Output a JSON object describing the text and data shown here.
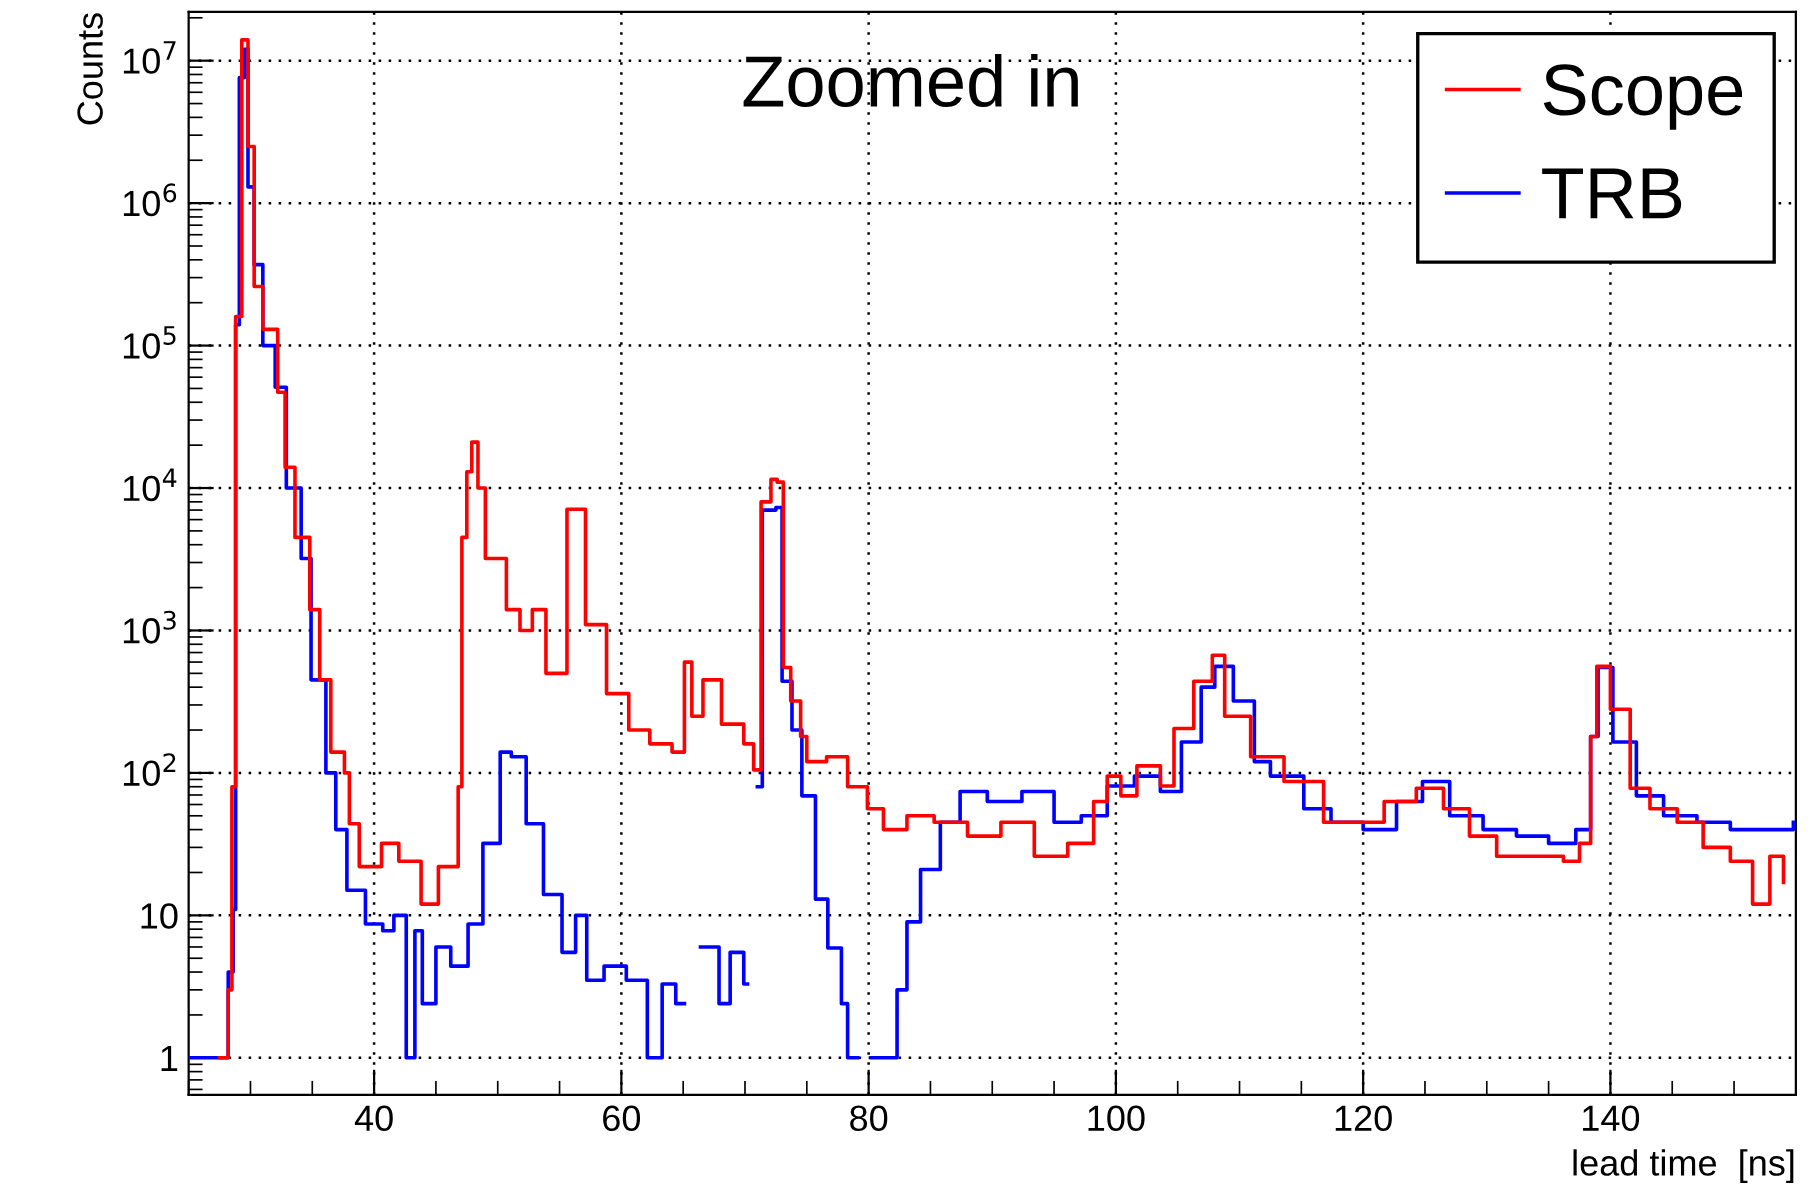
{
  "chart_data": {
    "type": "step",
    "xlabel": "lead time  [ns]",
    "ylabel": "Counts",
    "log": "y",
    "grid": true,
    "legend": "top right",
    "line_style": "solid",
    "marker": "none",
    "xlim": [
      25,
      155
    ],
    "xticks": [
      40,
      60,
      80,
      100,
      120,
      140
    ],
    "ylim": [
      0.55,
      22000000
    ],
    "yticks": [
      1,
      10,
      {
        "value": 100,
        "label": "10$^{2}$"
      },
      {
        "value": 1000,
        "label": "10$^{3}$"
      },
      {
        "value": 10000,
        "label": "10$^{4}$"
      },
      {
        "value": 100000,
        "label": "10$^{5}$"
      },
      {
        "value": 1000000,
        "label": "10$^{6}$"
      },
      {
        "value": 10000000,
        "label": "10$^{7}$"
      }
    ],
    "annotations": [
      "Zoomed in"
    ],
    "series": [
      {
        "name": "Scope",
        "color": "#ff0000",
        "x": [
          27.5,
          28.2,
          28.5,
          28.8,
          29.3,
          29.8,
          30.3,
          31.0,
          31.9,
          32.2,
          32.8,
          33.6,
          34.8,
          35.6,
          36.5,
          37.6,
          38.0,
          38.8,
          40.6,
          42.0,
          43.8,
          45.2,
          46.4,
          46.8,
          47.1,
          47.5,
          47.9,
          48.4,
          49.0,
          50.7,
          51.8,
          52.8,
          53.9,
          55.0,
          55.6,
          56.2,
          57.1,
          58.8,
          60.6,
          62.3,
          64.1,
          65.1,
          65.7,
          66.6,
          68.1,
          69.9,
          70.7,
          71.3,
          72.1,
          72.6,
          73.1,
          73.7,
          74.5,
          75.0,
          76.6,
          78.3,
          79.9,
          81.2,
          83.1,
          85.3,
          88.0,
          90.7,
          93.4,
          96.1,
          98.2,
          99.3,
          100.4,
          101.7,
          103.6,
          104.7,
          106.3,
          107.8,
          108.8,
          110.9,
          113.6,
          116.8,
          120.0,
          121.7,
          124.3,
          126.5,
          128.6,
          130.8,
          133.5,
          136.2,
          137.5,
          138.4,
          138.9,
          140.0,
          141.6,
          143.2,
          145.4,
          147.5,
          149.7,
          151.5,
          152.9,
          154.0
        ],
        "values": [
          1,
          3,
          80,
          160000,
          14000000,
          2500000,
          260000,
          130000,
          130000,
          47000,
          14000,
          4500,
          1400,
          450,
          140,
          100,
          44,
          22,
          32,
          24,
          12,
          22,
          22,
          80,
          4500,
          13000,
          21000,
          10000,
          3200,
          1400,
          1000,
          1400,
          500,
          500,
          7100,
          7100,
          1100,
          360,
          200,
          160,
          140,
          600,
          250,
          450,
          220,
          160,
          105,
          8000,
          11500,
          11000,
          550,
          320,
          180,
          120,
          130,
          80,
          56,
          40,
          50,
          45,
          36,
          45,
          26,
          32,
          63,
          95,
          69,
          112,
          81,
          205,
          440,
          670,
          250,
          130,
          87,
          45,
          45,
          63,
          78,
          56,
          36,
          26,
          26,
          24,
          32,
          180,
          560,
          280,
          78,
          56,
          45,
          30,
          24,
          12,
          26,
          17
        ]
      },
      {
        "name": "TRB",
        "color": "#0000ff",
        "x": [
          25,
          28.2,
          28.6,
          28.8,
          29.1,
          29.5,
          29.8,
          30.3,
          31.0,
          32.0,
          32.9,
          34.1,
          34.9,
          36.1,
          36.9,
          37.8,
          39.3,
          40.7,
          41.6,
          42.6,
          43.3,
          43.9,
          45.0,
          46.2,
          47.6,
          48.8,
          50.2,
          51.1,
          52.3,
          53.7,
          55.2,
          56.3,
          57.2,
          58.6,
          60.4,
          62.1,
          63.3,
          64.4,
          65.1,
          66.4,
          67.9,
          68.8,
          69.9,
          70.2,
          71.0,
          71.4,
          72.5,
          73.0,
          73.8,
          74.6,
          75.7,
          76.7,
          77.8,
          78.3,
          79.1,
          80.2,
          81.2,
          82.3,
          83.1,
          84.2,
          85.8,
          87.4,
          89.6,
          92.4,
          95.0,
          97.2,
          99.3,
          101.5,
          103.6,
          105.3,
          106.9,
          108.0,
          109.5,
          111.2,
          112.5,
          115.2,
          117.4,
          120.0,
          122.7,
          124.8,
          127.0,
          129.7,
          132.4,
          135.0,
          137.2,
          138.4,
          139.0,
          140.2,
          142.1,
          144.3,
          147.0,
          149.7,
          152.4,
          154.8
        ],
        "values": [
          1,
          4,
          11,
          140000,
          7600000,
          12000000,
          1300000,
          370000,
          100000,
          51000,
          10000,
          3200,
          450,
          100,
          40,
          15,
          8.7,
          7.8,
          10,
          1,
          7.8,
          2.4,
          6,
          4.4,
          8.7,
          32,
          140,
          130,
          44,
          14,
          5.5,
          10,
          3.5,
          4.4,
          3.5,
          1,
          3.3,
          2.4,
          null,
          6,
          2.4,
          5.5,
          3.3,
          null,
          80,
          7000,
          7300,
          440,
          200,
          69,
          13,
          5.9,
          2.4,
          1,
          null,
          1,
          1,
          3,
          9,
          21,
          45,
          74,
          63,
          74,
          45,
          50,
          81,
          95,
          74,
          165,
          400,
          560,
          320,
          120,
          95,
          56,
          45,
          40,
          63,
          87,
          50,
          40,
          36,
          32,
          40,
          180,
          550,
          165,
          69,
          50,
          45,
          40,
          40,
          45
        ]
      }
    ]
  }
}
